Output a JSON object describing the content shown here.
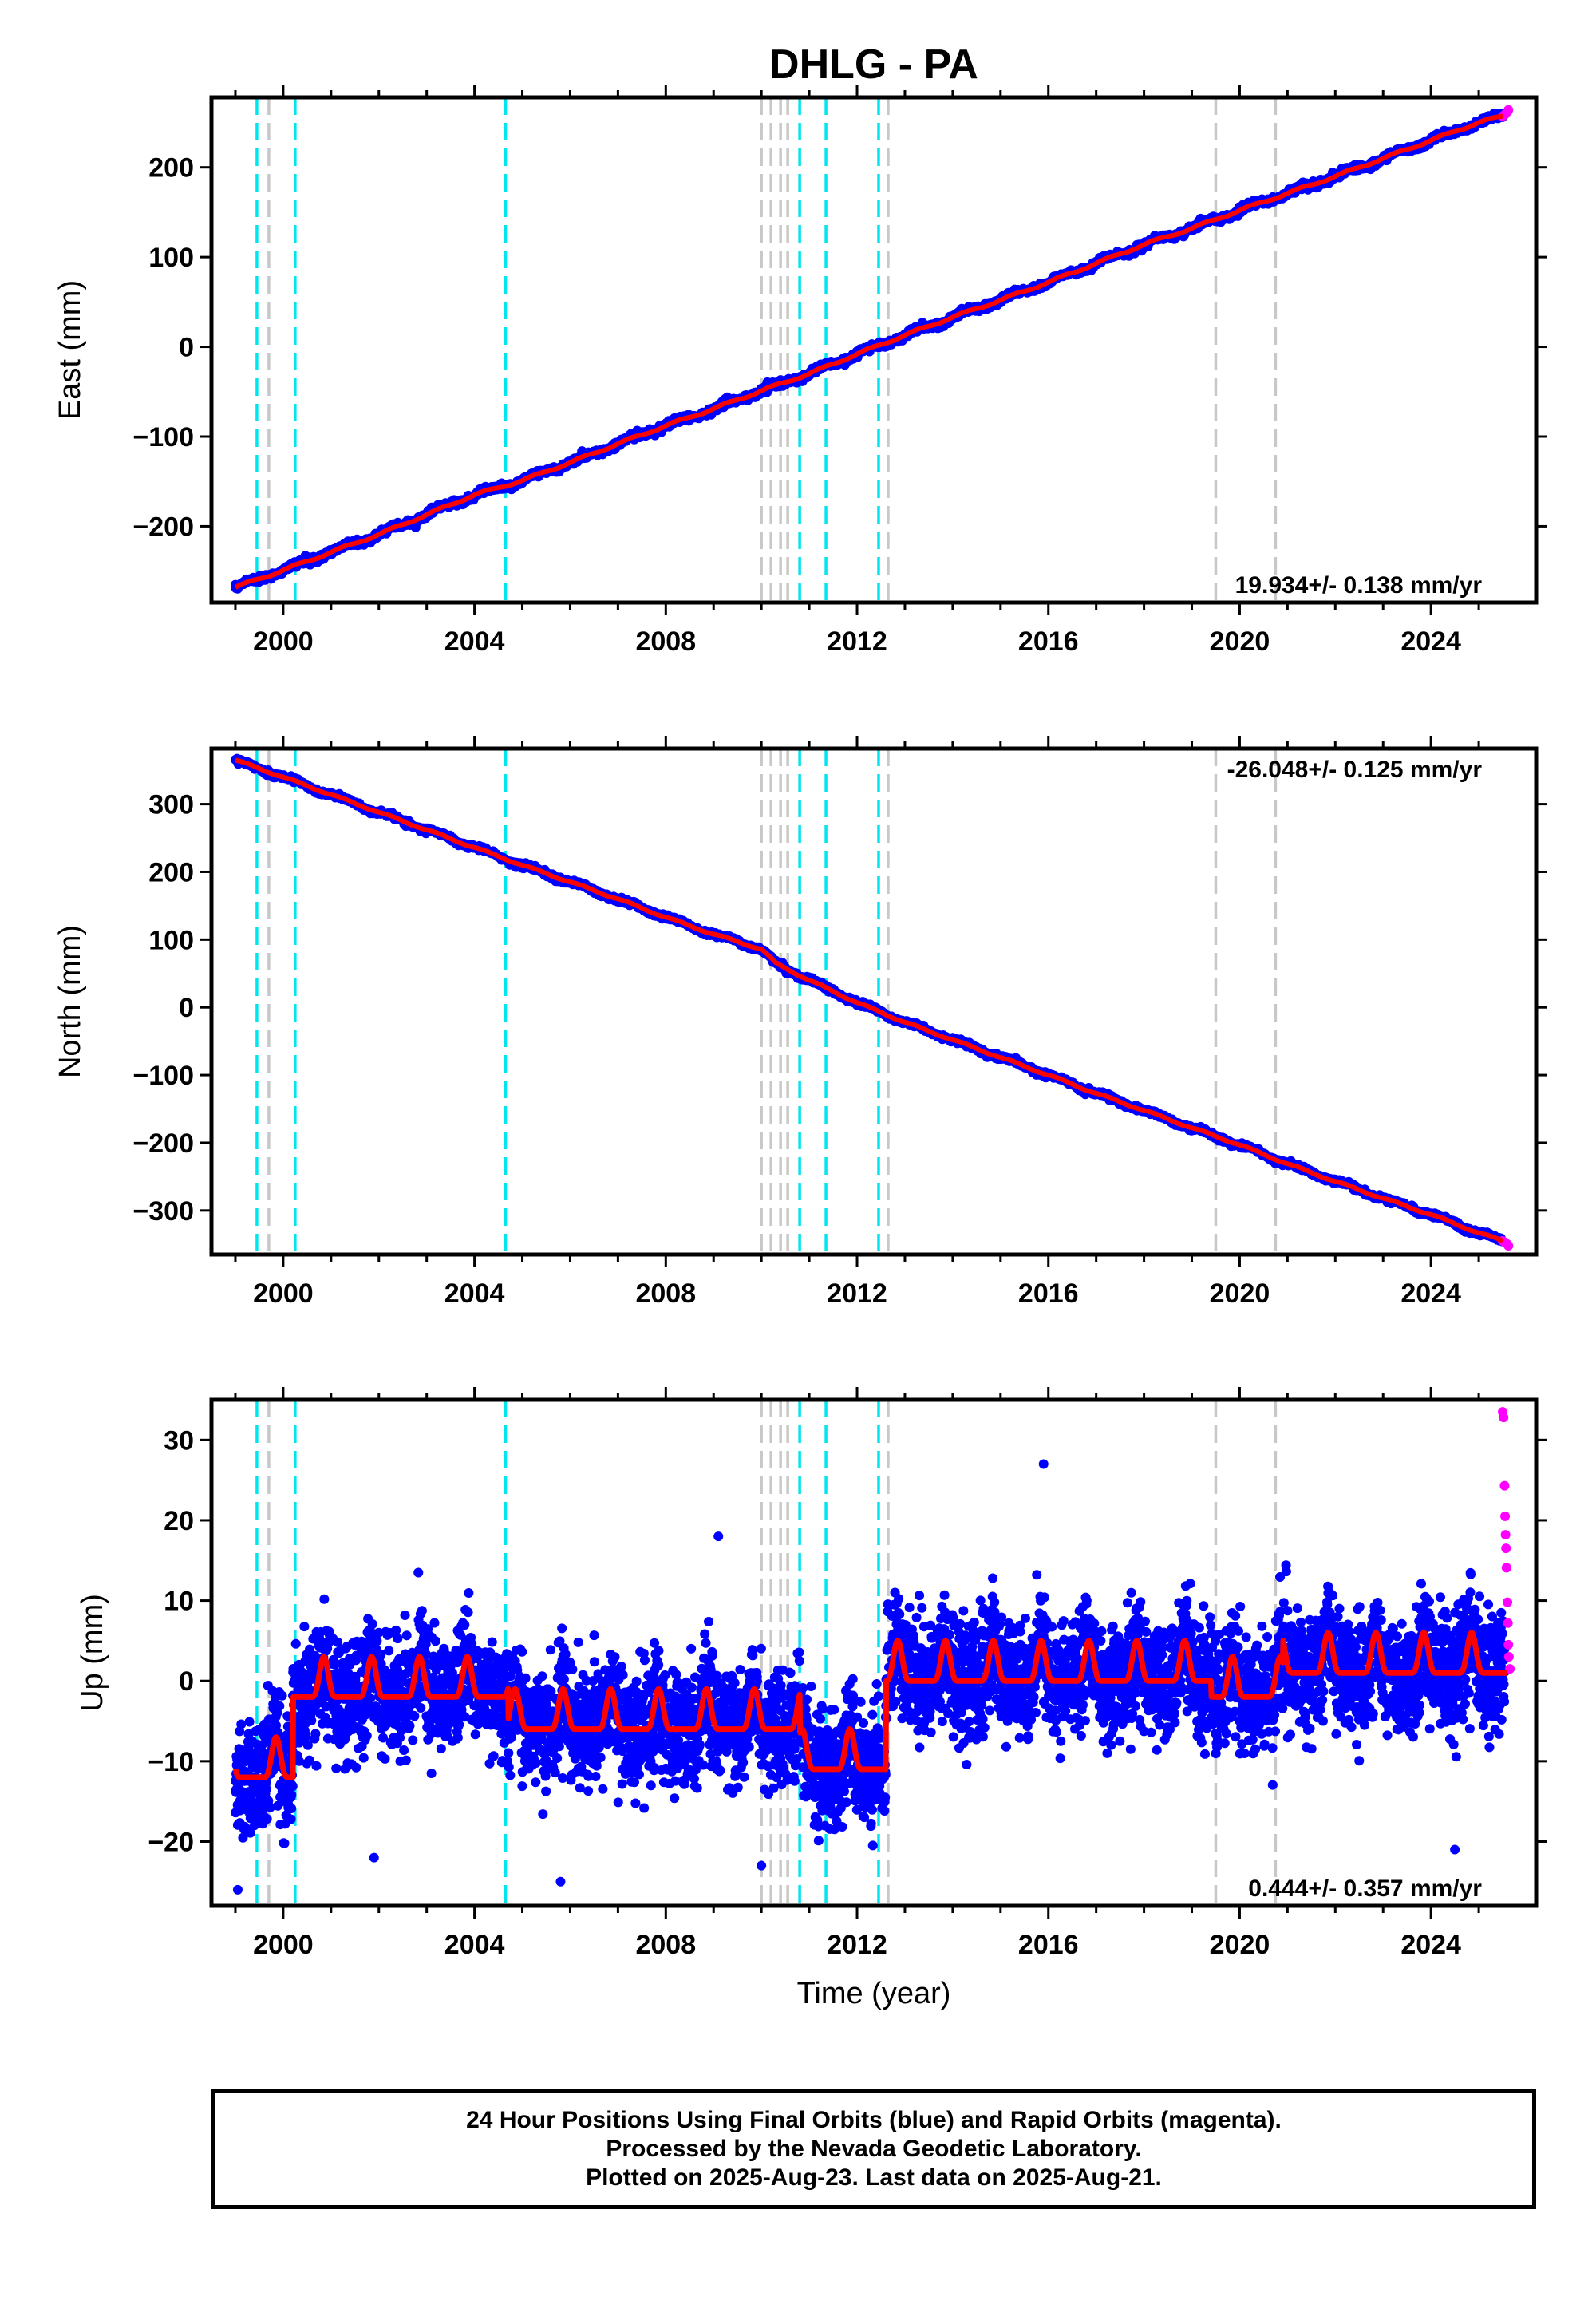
{
  "chart_data": {
    "type": "scatter",
    "title": "DHLG - PA",
    "xlabel": "Time (year)",
    "xlim": [
      1998.5,
      2026.2
    ],
    "xticks": [
      2000,
      2004,
      2008,
      2012,
      2016,
      2020,
      2024
    ],
    "x_ticklabels": [
      "2000",
      "2004",
      "2008",
      "2012",
      "2016",
      "2020",
      "2024"
    ],
    "final_orbit_color": "#0000ff",
    "rapid_orbit_color": "#ff00ff",
    "model_color": "#ff0000",
    "event_lines": {
      "cyan": {
        "color": "#00e5ee",
        "years": [
          1999.45,
          2000.25,
          2004.65,
          2010.8,
          2011.35,
          2012.45
        ]
      },
      "gray": {
        "color": "#c8c8c8",
        "years": [
          1999.7,
          2010.0,
          2010.2,
          2010.4,
          2010.55,
          2012.65,
          2019.5,
          2020.75
        ]
      }
    },
    "panels": [
      {
        "name": "east",
        "ylabel": "East (mm)",
        "ylim": [
          -285,
          278
        ],
        "yticks": [
          -200,
          -100,
          0,
          100,
          200
        ],
        "y_ticklabels": [
          "−200",
          "−100",
          "0",
          "100",
          "200"
        ],
        "rate_text": "19.934+/- 0.138 mm/yr",
        "rate_position": "bottom-right",
        "series": [
          {
            "name": "Final Orbits",
            "x": [
              1999.0,
              2000.0,
              2001.0,
              2002.0,
              2003.0,
              2004.0,
              2005.0,
              2006.0,
              2007.0,
              2008.0,
              2009.0,
              2010.0,
              2011.0,
              2012.0,
              2013.0,
              2014.0,
              2015.0,
              2016.0,
              2017.0,
              2018.0,
              2019.0,
              2020.0,
              2021.0,
              2022.0,
              2023.0,
              2024.0,
              2025.0,
              2025.5
            ],
            "y": [
              -268,
              -249,
              -229,
              -209,
              -187,
              -165,
              -149,
              -129,
              -108,
              -88,
              -69,
              -49,
              -30,
              -8,
              13,
              33,
              52,
              72,
              93,
              114,
              132,
              152,
              171,
              190,
              210,
              230,
              250,
              257
            ]
          },
          {
            "name": "Rapid Orbits",
            "x": [
              2025.5,
              2025.55,
              2025.6,
              2025.62
            ],
            "y": [
              257,
              259,
              262,
              264
            ]
          }
        ],
        "model": {
          "x": [
            1999.0,
            2025.6
          ],
          "y": [
            -268,
            261
          ]
        }
      },
      {
        "name": "north",
        "ylabel": "North (mm)",
        "ylim": [
          -365,
          382
        ],
        "yticks": [
          -300,
          -200,
          -100,
          0,
          100,
          200,
          300
        ],
        "y_ticklabels": [
          "−300",
          "−200",
          "−100",
          "0",
          "100",
          "200",
          "300"
        ],
        "rate_text": "-26.048+/- 0.125 mm/yr",
        "rate_position": "top-right",
        "series": [
          {
            "name": "Final Orbits",
            "x": [
              1999.0,
              2000.0,
              2001.0,
              2002.0,
              2003.0,
              2004.0,
              2005.0,
              2006.0,
              2007.0,
              2008.0,
              2009.0,
              2010.0,
              2010.3,
              2011.0,
              2012.0,
              2013.0,
              2014.0,
              2015.0,
              2016.0,
              2017.0,
              2018.0,
              2019.0,
              2020.0,
              2021.0,
              2022.0,
              2023.0,
              2024.0,
              2025.0,
              2025.5
            ],
            "y": [
              365,
              340,
              314,
              288,
              262,
              236,
              210,
              185,
              160,
              133,
              108,
              86,
              65,
              40,
              7,
              -22,
              -48,
              -74,
              -100,
              -127,
              -152,
              -178,
              -203,
              -231,
              -257,
              -282,
              -306,
              -333,
              -345
            ]
          },
          {
            "name": "Rapid Orbits",
            "x": [
              2025.5,
              2025.55,
              2025.6,
              2025.62
            ],
            "y": [
              -345,
              -347,
              -350,
              -352
            ]
          }
        ],
        "model": {
          "x": [
            1999.0,
            2025.6
          ],
          "y": [
            365,
            -348
          ]
        }
      },
      {
        "name": "up",
        "ylabel": "Up (mm)",
        "ylim": [
          -28,
          35
        ],
        "yticks": [
          -20,
          -10,
          0,
          10,
          20,
          30
        ],
        "y_ticklabels": [
          "−20",
          "−10",
          "0",
          "10",
          "20",
          "30"
        ],
        "rate_text": "0.444+/- 0.357 mm/yr",
        "rate_position": "bottom-right",
        "seasonal_amplitude_mm": 5,
        "scatter_spread_mm": 5,
        "offsets": [
          {
            "from": 1999.0,
            "to": 2000.2,
            "level": -10
          },
          {
            "from": 2000.2,
            "to": 2004.7,
            "level": 0
          },
          {
            "from": 2004.7,
            "to": 2010.8,
            "level": -4
          },
          {
            "from": 2010.8,
            "to": 2012.6,
            "level": -9
          },
          {
            "from": 2012.6,
            "to": 2019.4,
            "level": 2
          },
          {
            "from": 2019.4,
            "to": 2020.9,
            "level": 0
          },
          {
            "from": 2020.9,
            "to": 2025.6,
            "level": 3
          }
        ],
        "rapid_orbits": {
          "x": [
            2025.5,
            2025.52,
            2025.54,
            2025.55,
            2025.56,
            2025.57,
            2025.58,
            2025.6,
            2025.61,
            2025.62,
            2025.63,
            2025.65
          ],
          "y": [
            33.5,
            32.8,
            24.3,
            20.5,
            18.2,
            16.5,
            14.1,
            9.8,
            7.2,
            4.5,
            3.0,
            1.5
          ]
        },
        "outliers": {
          "x": [
            1999.05,
            2005.8,
            2010.0,
            2015.9,
            2024.5,
            2001.9,
            2009.1
          ],
          "y": [
            -26,
            -25,
            -23,
            27,
            -21,
            -22,
            18
          ]
        }
      }
    ]
  },
  "footer": {
    "line1": "24 Hour Positions Using Final Orbits (blue) and Rapid Orbits (magenta).",
    "line2": "Processed by the Nevada Geodetic Laboratory.",
    "line3": "Plotted on 2025-Aug-23. Last data on 2025-Aug-21."
  }
}
